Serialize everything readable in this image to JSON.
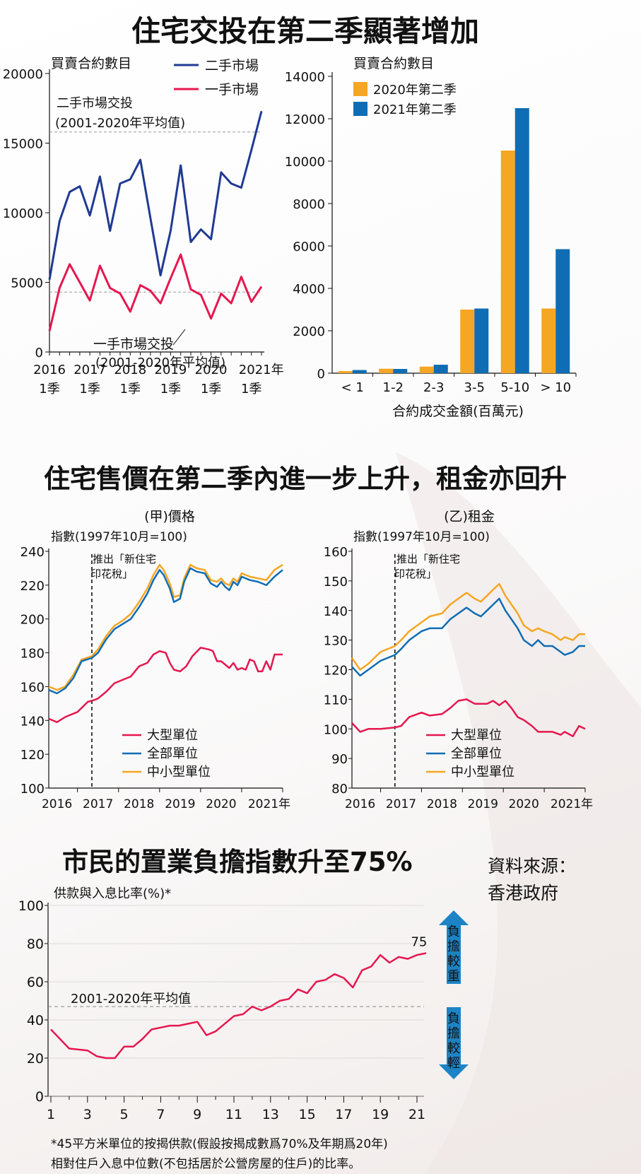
{
  "section1": {
    "title": "住宅交投在第二季顯著增加",
    "left": {
      "ylabel": "買賣合約數目",
      "legend": [
        "二手市場",
        "一手市場"
      ],
      "ann_second": [
        "二手市場交投",
        "(2001-2020年平均值)"
      ],
      "ann_first": [
        "一手市場交投",
        "(2001-2020年平均值)"
      ]
    },
    "right": {
      "ylabel": "買賣合約數目",
      "xlabel": "合約成交金額(百萬元)",
      "legend": [
        "2020年第二季",
        "2021年第二季"
      ]
    }
  },
  "section2": {
    "title": "住宅售價在第二季內進一步上升，租金亦回升",
    "left": {
      "subtitle": "(甲)價格",
      "ylabel": "指數(1997年10月=100)",
      "note": [
        "推出「新住宅",
        "印花稅」"
      ]
    },
    "right": {
      "subtitle": "(乙)租金",
      "ylabel": "指數(1997年10月=100)",
      "note": [
        "推出「新住宅",
        "印花稅」"
      ]
    },
    "legend": [
      "大型單位",
      "全部單位",
      "中小型單位"
    ]
  },
  "section3": {
    "title": "市民的置業負擔指數升至75%",
    "ylabel": "供款與入息比率(%)*",
    "avg_label": "2001-2020年平均值",
    "last_label": "75",
    "up_text": "負擔較重",
    "down_text": "負擔較輕",
    "footnote": [
      "*45平方米單位的按揭供款(假設按揭成數爲70%及年期爲20年)",
      "相對住戶入息中位數(不包括居於公營房屋的住戶)的比率。"
    ]
  },
  "source": [
    "資料來源：",
    "香港政府"
  ],
  "colors": {
    "navy": "#1f3a93",
    "red": "#e5174f",
    "orange": "#f5a623",
    "blue": "#0f6db5",
    "arrow": "#1c84c6"
  },
  "chart_data": [
    {
      "type": "line",
      "title": "住宅交投在第二季顯著增加",
      "ylabel": "買賣合約數目",
      "ylim": [
        0,
        20000
      ],
      "yticks": [
        0,
        5000,
        10000,
        15000,
        20000
      ],
      "xtick_labels": [
        [
          "2016",
          "1季"
        ],
        [
          "2017",
          "1季"
        ],
        [
          "2018",
          "1季"
        ],
        [
          "2019",
          "1季"
        ],
        [
          "2020",
          "1季"
        ],
        [
          "2021年",
          "1季"
        ]
      ],
      "x": [
        0,
        1,
        2,
        3,
        4,
        5,
        6,
        7,
        8,
        9,
        10,
        11,
        12,
        13,
        14,
        15,
        16,
        17,
        18,
        19,
        20,
        21
      ],
      "series": [
        {
          "name": "二手市場",
          "values": [
            5200,
            9400,
            11500,
            11900,
            9800,
            12600,
            8700,
            12100,
            12400,
            13800,
            9600,
            5500,
            8700,
            13400,
            7900,
            8800,
            8100,
            12900,
            12100,
            11800,
            14500,
            17300
          ]
        },
        {
          "name": "一手市場",
          "values": [
            1500,
            4600,
            6300,
            5000,
            3700,
            6200,
            4600,
            4200,
            2900,
            4800,
            4400,
            3500,
            5300,
            7000,
            4500,
            4100,
            2400,
            4200,
            3500,
            5400,
            3600,
            4700
          ]
        }
      ],
      "reference_lines": [
        {
          "name": "二手市場交投(2001-2020年平均值)",
          "value": 15800
        },
        {
          "name": "一手市場交投(2001-2020年平均值)",
          "value": 4300
        }
      ]
    },
    {
      "type": "bar",
      "ylabel": "買賣合約數目",
      "xlabel": "合約成交金額(百萬元)",
      "ylim": [
        0,
        14000
      ],
      "yticks": [
        0,
        2000,
        4000,
        6000,
        8000,
        10000,
        12000,
        14000
      ],
      "categories": [
        "< 1",
        "1-2",
        "2-3",
        "3-5",
        "5-10",
        "> 10"
      ],
      "series": [
        {
          "name": "2020年第二季",
          "values": [
            100,
            210,
            310,
            3000,
            10500,
            3050
          ]
        },
        {
          "name": "2021年第二季",
          "values": [
            150,
            200,
            400,
            3050,
            12500,
            5850
          ]
        }
      ]
    },
    {
      "type": "line",
      "title": "(甲)價格",
      "ylabel": "指數(1997年10月=100)",
      "ylim": [
        100,
        240
      ],
      "yticks": [
        100,
        120,
        140,
        160,
        180,
        200,
        220,
        240
      ],
      "xtick_labels": [
        "2016",
        "2017",
        "2018",
        "2019",
        "2020",
        "2021年"
      ],
      "x_range": [
        2015.8,
        2021.5
      ],
      "event": {
        "label": "推出「新住宅印花稅」",
        "x": 2016.85
      },
      "series": [
        {
          "name": "大型單位",
          "x": [
            2015.8,
            2016.0,
            2016.2,
            2016.5,
            2016.75,
            2016.9,
            2017.0,
            2017.2,
            2017.4,
            2017.6,
            2017.8,
            2018.0,
            2018.2,
            2018.35,
            2018.5,
            2018.65,
            2018.75,
            2018.85,
            2019.0,
            2019.15,
            2019.3,
            2019.5,
            2019.7,
            2019.8,
            2019.9,
            2020.0,
            2020.2,
            2020.3,
            2020.4,
            2020.5,
            2020.6,
            2020.7,
            2020.8,
            2020.9,
            2021.0,
            2021.1,
            2021.2,
            2021.3,
            2021.5
          ],
          "values": [
            141,
            139,
            142,
            145,
            151,
            152,
            153,
            157,
            162,
            164,
            166,
            172,
            174,
            179,
            181,
            180,
            174,
            170,
            169,
            172,
            178,
            183,
            182,
            181,
            175,
            175,
            171,
            174,
            170,
            171,
            170,
            176,
            175,
            169,
            169,
            175,
            170,
            179,
            179
          ]
        },
        {
          "name": "全部單位",
          "x": [
            2015.8,
            2016.0,
            2016.2,
            2016.4,
            2016.6,
            2016.85,
            2017.0,
            2017.2,
            2017.4,
            2017.6,
            2017.8,
            2018.0,
            2018.2,
            2018.35,
            2018.5,
            2018.6,
            2018.75,
            2018.85,
            2019.0,
            2019.1,
            2019.25,
            2019.4,
            2019.6,
            2019.75,
            2019.9,
            2020.0,
            2020.1,
            2020.2,
            2020.3,
            2020.4,
            2020.5,
            2020.7,
            2020.9,
            2021.1,
            2021.3,
            2021.5
          ],
          "values": [
            158,
            156,
            159,
            165,
            175,
            177,
            180,
            188,
            194,
            197,
            200,
            207,
            215,
            223,
            229,
            226,
            218,
            210,
            212,
            222,
            230,
            228,
            227,
            221,
            219,
            222,
            219,
            217,
            222,
            220,
            225,
            223,
            222,
            220,
            225,
            229
          ]
        },
        {
          "name": "中小型單位",
          "x": [
            2015.8,
            2016.0,
            2016.2,
            2016.4,
            2016.6,
            2016.85,
            2017.0,
            2017.2,
            2017.4,
            2017.6,
            2017.8,
            2018.0,
            2018.2,
            2018.35,
            2018.5,
            2018.6,
            2018.75,
            2018.85,
            2019.0,
            2019.1,
            2019.25,
            2019.4,
            2019.6,
            2019.75,
            2019.9,
            2020.0,
            2020.1,
            2020.2,
            2020.3,
            2020.4,
            2020.5,
            2020.7,
            2020.9,
            2021.1,
            2021.3,
            2021.5
          ],
          "values": [
            160,
            158,
            160,
            167,
            176,
            178,
            182,
            190,
            196,
            199,
            203,
            210,
            218,
            226,
            232,
            229,
            221,
            213,
            214,
            224,
            232,
            230,
            229,
            223,
            222,
            224,
            221,
            220,
            224,
            222,
            227,
            225,
            224,
            223,
            229,
            232
          ]
        }
      ]
    },
    {
      "type": "line",
      "title": "(乙)租金",
      "ylabel": "指數(1997年10月=100)",
      "ylim": [
        80,
        160
      ],
      "yticks": [
        80,
        90,
        100,
        110,
        120,
        130,
        140,
        150,
        160
      ],
      "xtick_labels": [
        "2016",
        "2017",
        "2018",
        "2019",
        "2020",
        "2021年"
      ],
      "x_range": [
        2015.8,
        2021.5
      ],
      "event": {
        "label": "推出「新住宅印花稅」",
        "x": 2016.85
      },
      "series": [
        {
          "name": "大型單位",
          "x": [
            2015.8,
            2016.0,
            2016.2,
            2016.5,
            2016.85,
            2017.0,
            2017.2,
            2017.5,
            2017.7,
            2018.0,
            2018.2,
            2018.4,
            2018.6,
            2018.8,
            2018.95,
            2019.1,
            2019.25,
            2019.4,
            2019.55,
            2019.7,
            2019.85,
            2020.0,
            2020.2,
            2020.35,
            2020.5,
            2020.7,
            2020.9,
            2021.0,
            2021.2,
            2021.35,
            2021.5
          ],
          "values": [
            102,
            99,
            100,
            100,
            100.5,
            101,
            104,
            105.5,
            104.5,
            105,
            107,
            109.5,
            110,
            108.5,
            108.5,
            108.5,
            109.5,
            108,
            109.5,
            107,
            104,
            103,
            101,
            99,
            99,
            99,
            98,
            99,
            97.5,
            101,
            100
          ]
        },
        {
          "name": "全部單位",
          "x": [
            2015.8,
            2016.0,
            2016.2,
            2016.5,
            2016.85,
            2017.0,
            2017.2,
            2017.5,
            2017.7,
            2018.0,
            2018.2,
            2018.4,
            2018.6,
            2018.8,
            2018.95,
            2019.1,
            2019.25,
            2019.4,
            2019.55,
            2019.7,
            2019.85,
            2020.0,
            2020.2,
            2020.35,
            2020.5,
            2020.7,
            2020.9,
            2021.0,
            2021.2,
            2021.35,
            2021.5
          ],
          "values": [
            121,
            118,
            120,
            123,
            125,
            127,
            130,
            133,
            134,
            134,
            137,
            139,
            141,
            139,
            138,
            140,
            142,
            144,
            140,
            137,
            134,
            130,
            128,
            130,
            128,
            128,
            126,
            125,
            126,
            128,
            128
          ]
        },
        {
          "name": "中小型單位",
          "x": [
            2015.8,
            2016.0,
            2016.2,
            2016.5,
            2016.85,
            2017.0,
            2017.2,
            2017.5,
            2017.7,
            2018.0,
            2018.2,
            2018.4,
            2018.6,
            2018.8,
            2018.95,
            2019.1,
            2019.25,
            2019.4,
            2019.55,
            2019.7,
            2019.85,
            2020.0,
            2020.2,
            2020.35,
            2020.5,
            2020.7,
            2020.9,
            2021.0,
            2021.2,
            2021.35,
            2021.5
          ],
          "values": [
            124,
            120,
            122,
            126,
            128,
            130,
            133,
            136,
            138,
            139,
            142,
            144,
            146,
            144,
            143,
            145,
            147,
            149,
            145,
            142,
            139,
            135,
            133,
            134,
            133,
            132,
            130,
            131,
            130,
            132,
            132
          ]
        }
      ]
    },
    {
      "type": "line",
      "title": "市民的置業負擔指數升至75%",
      "ylabel": "供款與入息比率(%)*",
      "ylim": [
        0,
        100
      ],
      "yticks": [
        0,
        20,
        40,
        60,
        80,
        100
      ],
      "xticks": [
        1,
        3,
        5,
        7,
        9,
        11,
        13,
        15,
        17,
        19,
        21
      ],
      "x": [
        1,
        2,
        3,
        3.5,
        4,
        4.5,
        5,
        5.5,
        6,
        6.5,
        7,
        7.5,
        8,
        8.5,
        9,
        9.5,
        10,
        10.5,
        11,
        11.5,
        12,
        12.5,
        13,
        13.5,
        14,
        14.5,
        15,
        15.5,
        16,
        16.5,
        17,
        17.5,
        18,
        18.5,
        19,
        19.5,
        20,
        20.5,
        21,
        21.5
      ],
      "values": [
        35,
        25,
        24,
        21,
        20,
        20,
        26,
        26,
        30,
        35,
        36,
        37,
        37,
        38,
        39,
        32,
        34,
        38,
        42,
        43,
        47,
        45,
        47,
        50,
        51,
        56,
        54,
        60,
        61,
        64,
        62,
        57,
        66,
        68,
        74,
        70,
        73,
        72,
        74,
        75
      ],
      "reference_lines": [
        {
          "name": "2001-2020年平均值",
          "value": 47
        }
      ],
      "annotations": [
        {
          "x": 21.5,
          "y": 75,
          "text": "75"
        }
      ]
    }
  ]
}
